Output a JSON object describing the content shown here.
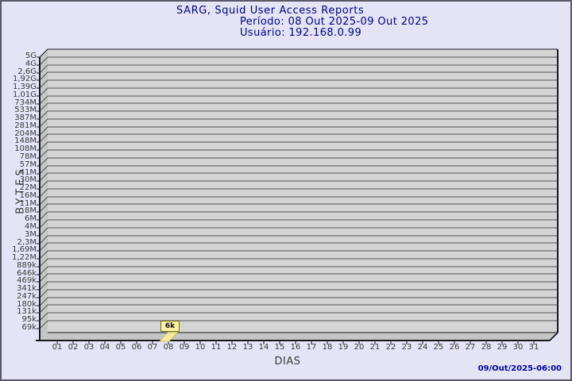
{
  "header": {
    "title": "SARG, Squid User Access Reports",
    "period": "Período: 08 Out 2025-09 Out 2025",
    "user": "Usuário: 192.168.0.99"
  },
  "chart": {
    "y_axis_label": "BYTES",
    "x_axis_label": "DIAS",
    "y_ticks": [
      "5G",
      "4G",
      "2,6G",
      "1,92G",
      "1,39G",
      "1,01G",
      "734M",
      "533M",
      "387M",
      "281M",
      "204M",
      "148M",
      "108M",
      "78M",
      "57M",
      "41M",
      "30M",
      "22M",
      "16M",
      "11M",
      "8M",
      "6M",
      "4M",
      "3M",
      "2,3M",
      "1,69M",
      "1,22M",
      "889k",
      "646k",
      "469k",
      "341k",
      "247k",
      "180k",
      "131k",
      "95k",
      "69k"
    ],
    "x_ticks": [
      "01",
      "02",
      "03",
      "04",
      "05",
      "06",
      "07",
      "08",
      "09",
      "10",
      "11",
      "12",
      "13",
      "14",
      "15",
      "16",
      "17",
      "18",
      "19",
      "20",
      "21",
      "22",
      "23",
      "24",
      "25",
      "26",
      "27",
      "28",
      "29",
      "30",
      "31"
    ],
    "bar_day": "08",
    "bar_label": "6k"
  },
  "footer": {
    "timestamp": "09/Out/2025-06:00"
  },
  "colors": {
    "page_bg": "#e4e4f6",
    "plot_bg": "#d4d4d4",
    "wall": "#c5c5c5",
    "grid": "#555555",
    "axis": "#1a1a1a",
    "title_navy": "#00008b",
    "footer_blue": "#0000a8",
    "tick_text": "#3b3b3b",
    "bar": "#f6ed9e",
    "bar_edge": "#cbbf55",
    "bar_stem": "#ece087",
    "callout_bg": "#faf2a2",
    "callout_border": "#72720e"
  },
  "chart_data": {
    "type": "bar",
    "title": "SARG, Squid User Access Reports",
    "subtitle": [
      "Período: 08 Out 2025-09 Out 2025",
      "Usuário: 192.168.0.99"
    ],
    "xlabel": "DIAS",
    "ylabel": "BYTES",
    "categories": [
      "01",
      "02",
      "03",
      "04",
      "05",
      "06",
      "07",
      "08",
      "09",
      "10",
      "11",
      "12",
      "13",
      "14",
      "15",
      "16",
      "17",
      "18",
      "19",
      "20",
      "21",
      "22",
      "23",
      "24",
      "25",
      "26",
      "27",
      "28",
      "29",
      "30",
      "31"
    ],
    "values": [
      0,
      0,
      0,
      0,
      0,
      0,
      0,
      6144,
      0,
      0,
      0,
      0,
      0,
      0,
      0,
      0,
      0,
      0,
      0,
      0,
      0,
      0,
      0,
      0,
      0,
      0,
      0,
      0,
      0,
      0,
      0
    ],
    "value_labels": {
      "08": "6k"
    },
    "y_scale": "log",
    "y_tick_labels_top_to_bottom": [
      "5G",
      "4G",
      "2,6G",
      "1,92G",
      "1,39G",
      "1,01G",
      "734M",
      "533M",
      "387M",
      "281M",
      "204M",
      "148M",
      "108M",
      "78M",
      "57M",
      "41M",
      "30M",
      "22M",
      "16M",
      "11M",
      "8M",
      "6M",
      "4M",
      "3M",
      "2,3M",
      "1,69M",
      "1,22M",
      "889k",
      "646k",
      "469k",
      "341k",
      "247k",
      "180k",
      "131k",
      "95k",
      "69k"
    ],
    "ylim_labels": [
      "69k",
      "5G"
    ],
    "grid": true,
    "legend_position": "none",
    "footer": "09/Out/2025-06:00"
  }
}
